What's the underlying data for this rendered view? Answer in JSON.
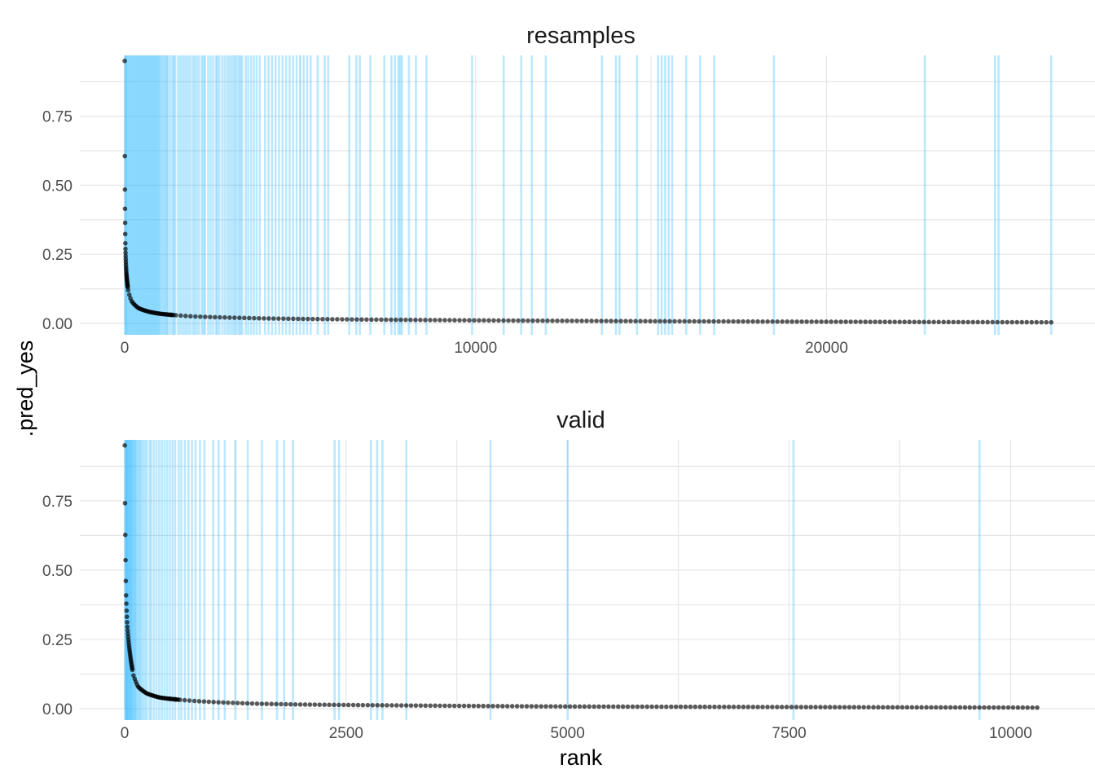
{
  "chart_data": {
    "type": "scatter",
    "ylabel": ".pred_yes",
    "xlabel": "rank",
    "line_color": "#1EB4FF",
    "point_color": "#000000",
    "grid": true,
    "facets": [
      {
        "title": "resamples",
        "xlim": [
          0,
          26000
        ],
        "ylim": [
          0,
          0.97
        ],
        "x_ticks": [
          0,
          10000,
          20000
        ],
        "x_tick_labels": [
          "0",
          "10000",
          "20000"
        ],
        "y_ticks": [
          0,
          0.25,
          0.5,
          0.75
        ],
        "y_tick_labels": [
          "0.00",
          "0.25",
          "0.50",
          "0.75"
        ],
        "n_points": 26400,
        "curve": [
          [
            1,
            0.95
          ],
          [
            5,
            0.55
          ],
          [
            20,
            0.28
          ],
          [
            50,
            0.18
          ],
          [
            100,
            0.12
          ],
          [
            200,
            0.08
          ],
          [
            400,
            0.055
          ],
          [
            700,
            0.042
          ],
          [
            1000,
            0.035
          ],
          [
            2000,
            0.025
          ],
          [
            4000,
            0.018
          ],
          [
            6000,
            0.015
          ],
          [
            10000,
            0.011
          ],
          [
            15000,
            0.008
          ],
          [
            20000,
            0.006
          ],
          [
            26400,
            0.004
          ]
        ],
        "positive_ranks": [
          10,
          30,
          50,
          80,
          110,
          140,
          170,
          200,
          230,
          260,
          290,
          320,
          350,
          380,
          410,
          440,
          470,
          500,
          530,
          560,
          590,
          620,
          650,
          680,
          710,
          740,
          770,
          800,
          830,
          860,
          890,
          920,
          950,
          980,
          1010,
          1050,
          1090,
          1130,
          1170,
          1200,
          1240,
          1300,
          1360,
          1400,
          1440,
          1520,
          1580,
          1640,
          1700,
          1760,
          1820,
          1880,
          1950,
          2000,
          2060,
          2120,
          2200,
          2250,
          2290,
          2380,
          2450,
          2520,
          2600,
          2640,
          2700,
          2780,
          2850,
          2920,
          2980,
          3040,
          3100,
          3150,
          3200,
          3260,
          3300,
          3350,
          3450,
          3520,
          3600,
          3680,
          3760,
          3850,
          4000,
          4100,
          4200,
          4300,
          4400,
          4500,
          4600,
          4700,
          4800,
          4900,
          5000,
          5100,
          5200,
          5300,
          5500,
          5700,
          5800,
          6400,
          6600,
          6700,
          7000,
          7400,
          7600,
          7700,
          7800,
          7850,
          7900,
          8100,
          8300,
          8600,
          9900,
          10800,
          11300,
          11600,
          12000,
          13600,
          14000,
          14100,
          14600,
          15200,
          15300,
          15400,
          15500,
          15600,
          16000,
          16400,
          16800,
          18500,
          22800,
          24800,
          24900,
          26400
        ]
      },
      {
        "title": "valid",
        "xlim": [
          0,
          10300
        ],
        "ylim": [
          0,
          0.97
        ],
        "x_ticks": [
          0,
          2500,
          5000,
          7500,
          10000
        ],
        "x_tick_labels": [
          "0",
          "2500",
          "5000",
          "7500",
          "10000"
        ],
        "y_ticks": [
          0,
          0.25,
          0.5,
          0.75
        ],
        "y_tick_labels": [
          "0.00",
          "0.25",
          "0.50",
          "0.75"
        ],
        "n_points": 10300,
        "curve": [
          [
            1,
            0.95
          ],
          [
            3,
            0.8
          ],
          [
            8,
            0.6
          ],
          [
            15,
            0.42
          ],
          [
            30,
            0.3
          ],
          [
            60,
            0.2
          ],
          [
            100,
            0.12
          ],
          [
            150,
            0.08
          ],
          [
            250,
            0.055
          ],
          [
            400,
            0.04
          ],
          [
            700,
            0.03
          ],
          [
            1000,
            0.024
          ],
          [
            1500,
            0.018
          ],
          [
            2000,
            0.015
          ],
          [
            3000,
            0.012
          ],
          [
            5000,
            0.008
          ],
          [
            7500,
            0.006
          ],
          [
            10300,
            0.004
          ]
        ],
        "positive_ranks": [
          5,
          12,
          18,
          25,
          32,
          40,
          48,
          56,
          64,
          72,
          80,
          90,
          100,
          110,
          120,
          130,
          145,
          160,
          175,
          190,
          210,
          230,
          250,
          280,
          300,
          330,
          360,
          390,
          420,
          450,
          480,
          510,
          540,
          570,
          610,
          640,
          680,
          720,
          760,
          800,
          850,
          900,
          1000,
          1060,
          1130,
          1250,
          1390,
          1550,
          1720,
          1800,
          1900,
          2370,
          2420,
          2780,
          2850,
          2910,
          3180,
          4130,
          5000,
          7550,
          9650
        ]
      }
    ]
  }
}
